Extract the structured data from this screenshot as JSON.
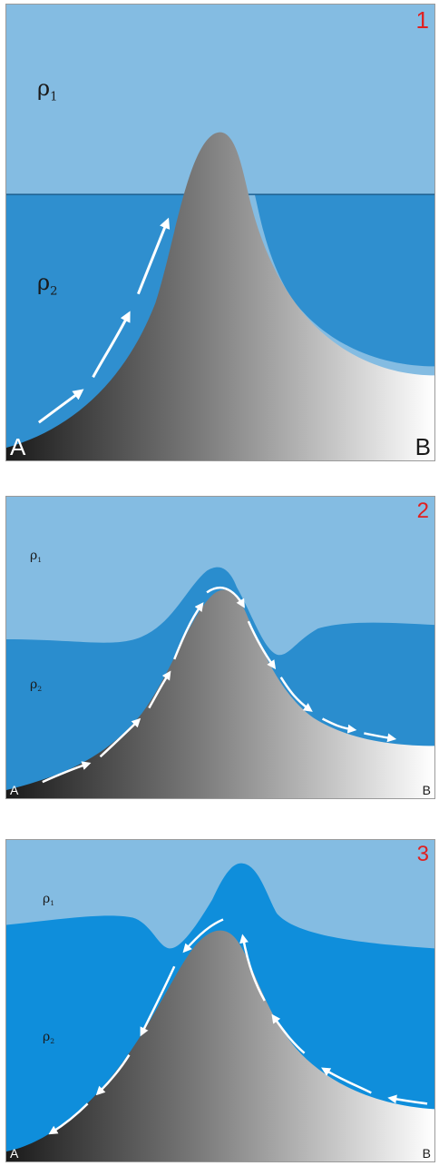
{
  "colors": {
    "upper_layer": "#84bce2",
    "lower_layer_panel1": "#2f8fcf",
    "lower_layer_panel2": "#2a8dce",
    "lower_layer_panel3": "#0f8edb",
    "mountain_dark": "#1a1a1a",
    "mountain_light": "#ffffff",
    "panel_number": "#e02020",
    "arrow": "#ffffff"
  },
  "panels": [
    {
      "number": "1",
      "rho_upper": "ρ",
      "rho_upper_sub": "1",
      "rho_lower": "ρ",
      "rho_lower_sub": "2",
      "left_label": "A",
      "right_label": "B"
    },
    {
      "number": "2",
      "rho_upper": "ρ",
      "rho_upper_sub": "1",
      "rho_lower": "ρ",
      "rho_lower_sub": "2",
      "left_label": "A",
      "right_label": "B"
    },
    {
      "number": "3",
      "rho_upper": "ρ",
      "rho_upper_sub": "1",
      "rho_lower": "ρ",
      "rho_lower_sub": "2",
      "left_label": "A",
      "right_label": "B"
    }
  ]
}
